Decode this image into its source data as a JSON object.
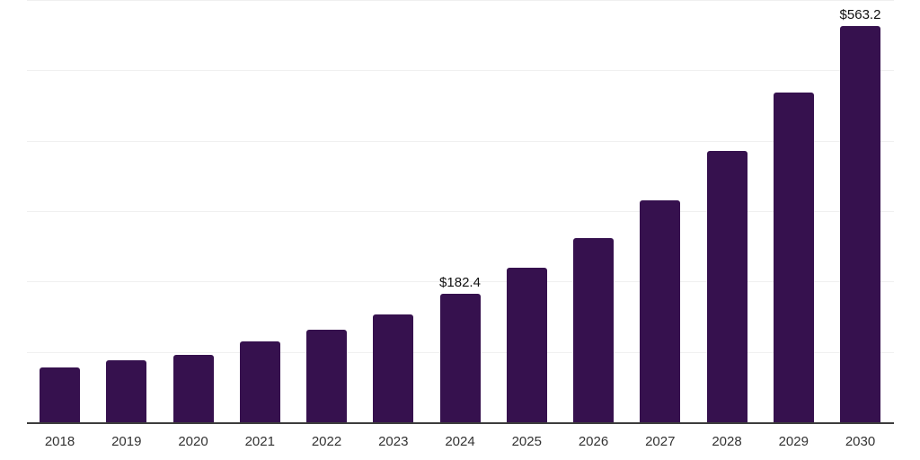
{
  "chart_data": {
    "type": "bar",
    "title": "",
    "xlabel": "",
    "ylabel": "",
    "categories": [
      "2018",
      "2019",
      "2020",
      "2021",
      "2022",
      "2023",
      "2024",
      "2025",
      "2026",
      "2027",
      "2028",
      "2029",
      "2030"
    ],
    "values": [
      78,
      88,
      96,
      115,
      132,
      153,
      182.4,
      220,
      262,
      315,
      386,
      469,
      563.2
    ],
    "data_labels": [
      null,
      null,
      null,
      null,
      null,
      null,
      "$182.4",
      null,
      null,
      null,
      null,
      null,
      "$563.2"
    ],
    "ylim": [
      0,
      600
    ],
    "gridline_values": [
      0,
      100,
      200,
      300,
      400,
      500,
      600
    ],
    "grid": "horizontal-only",
    "legend": "none",
    "colors": {
      "bar": "#36114E",
      "axis_line": "#3d3d3d",
      "gridline": "#f0f0f0",
      "tick_label": "#333333",
      "data_label": "#111111",
      "background": "#ffffff"
    }
  }
}
